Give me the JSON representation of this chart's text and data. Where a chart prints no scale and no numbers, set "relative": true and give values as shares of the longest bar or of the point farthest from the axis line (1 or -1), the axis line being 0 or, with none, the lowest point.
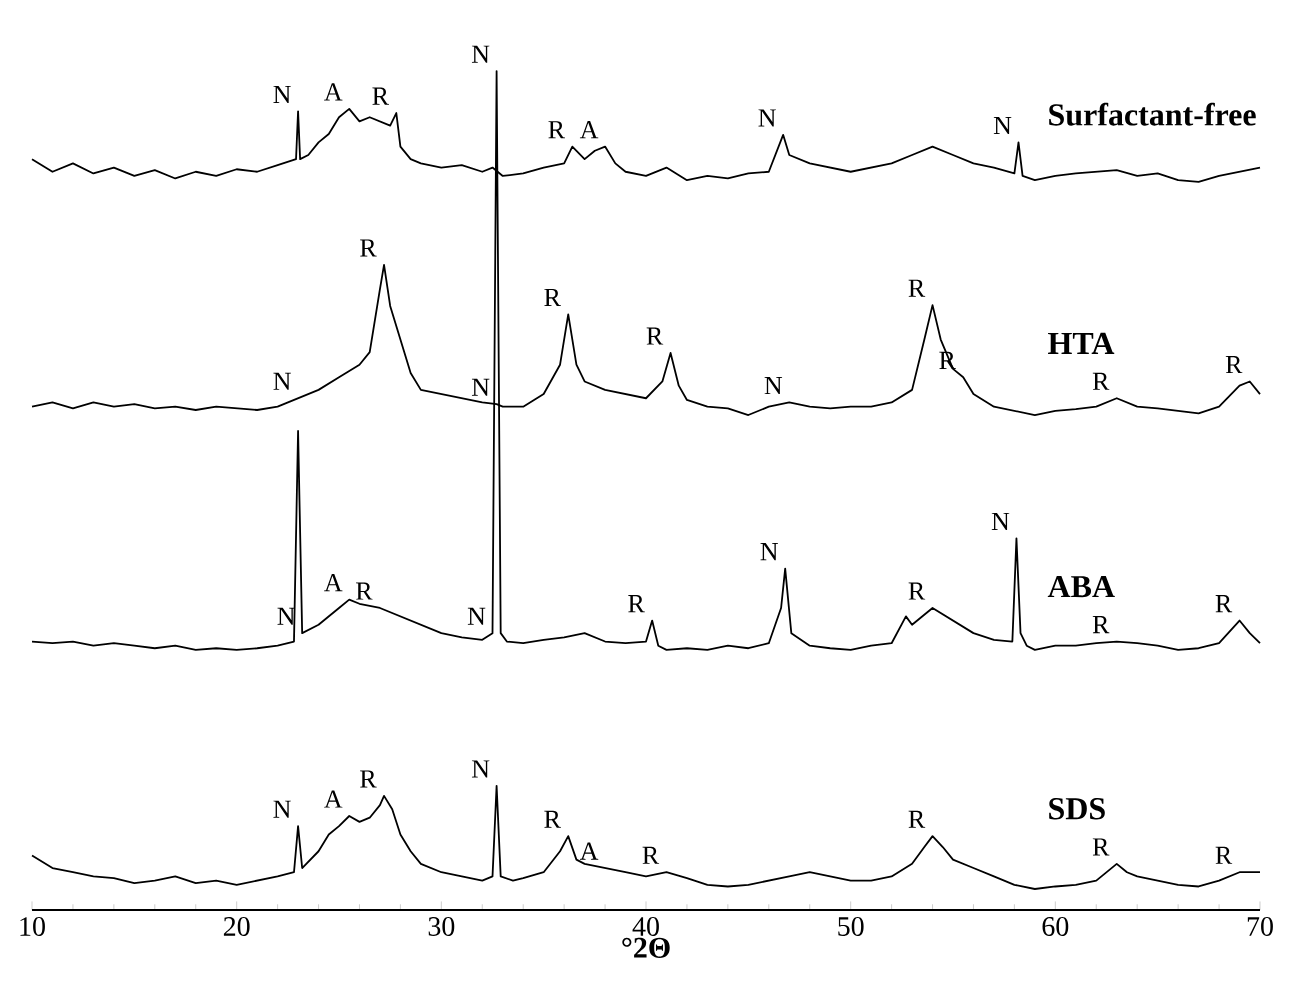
{
  "chart_data": {
    "type": "line",
    "relative": true,
    "xlabel": "°2Θ",
    "xlim": [
      10,
      70
    ],
    "xticks": [
      10,
      20,
      30,
      40,
      50,
      60,
      70
    ],
    "series": [
      {
        "name": "Surfactant-free",
        "color": "#000000",
        "x": [
          10,
          11,
          12,
          13,
          14,
          15,
          16,
          17,
          18,
          19,
          20,
          21,
          22,
          22.9,
          23.0,
          23.1,
          23.5,
          24,
          24.5,
          25,
          25.5,
          26,
          26.5,
          27,
          27.5,
          27.8,
          28,
          28.5,
          29,
          30,
          31,
          32,
          32.5,
          33,
          34,
          35,
          36,
          36.4,
          37,
          37.5,
          38,
          38.5,
          39,
          40,
          41,
          42,
          43,
          44,
          45,
          46,
          46.7,
          47,
          48,
          49,
          50,
          51,
          52,
          53,
          54,
          55,
          56,
          57,
          58,
          58.2,
          58.4,
          59,
          60,
          61,
          62,
          63,
          64,
          65,
          66,
          67,
          68,
          69,
          70
        ],
        "values": [
          0.895,
          0.88,
          0.89,
          0.878,
          0.885,
          0.875,
          0.882,
          0.872,
          0.88,
          0.875,
          0.883,
          0.88,
          0.888,
          0.895,
          0.952,
          0.895,
          0.9,
          0.915,
          0.925,
          0.945,
          0.955,
          0.94,
          0.945,
          0.94,
          0.935,
          0.95,
          0.91,
          0.895,
          0.89,
          0.885,
          0.888,
          0.88,
          0.885,
          0.875,
          0.878,
          0.885,
          0.89,
          0.91,
          0.895,
          0.905,
          0.91,
          0.89,
          0.88,
          0.875,
          0.885,
          0.87,
          0.875,
          0.872,
          0.878,
          0.88,
          0.924,
          0.9,
          0.89,
          0.885,
          0.88,
          0.885,
          0.89,
          0.9,
          0.91,
          0.9,
          0.89,
          0.885,
          0.878,
          0.915,
          0.875,
          0.87,
          0.875,
          0.878,
          0.88,
          0.882,
          0.875,
          0.878,
          0.87,
          0.868,
          0.875,
          0.88,
          0.885
        ]
      },
      {
        "name": "HTA",
        "color": "#000000",
        "x": [
          10,
          11,
          12,
          13,
          14,
          15,
          16,
          17,
          18,
          19,
          20,
          21,
          22,
          23,
          24,
          25,
          26,
          26.5,
          27,
          27.2,
          27.5,
          28,
          28.5,
          29,
          30,
          31,
          32,
          32.7,
          33,
          34,
          35,
          35.8,
          36.2,
          36.6,
          37,
          38,
          39,
          40,
          40.8,
          41.2,
          41.6,
          42,
          43,
          44,
          45,
          46,
          47,
          48,
          49,
          50,
          51,
          52,
          53,
          53.6,
          54,
          54.4,
          55,
          55.5,
          56,
          57,
          58,
          59,
          60,
          61,
          62,
          63,
          64,
          65,
          66,
          67,
          68,
          69,
          69.5,
          70
        ],
        "values": [
          0.6,
          0.605,
          0.598,
          0.605,
          0.6,
          0.603,
          0.598,
          0.6,
          0.596,
          0.6,
          0.598,
          0.596,
          0.6,
          0.61,
          0.62,
          0.635,
          0.65,
          0.665,
          0.74,
          0.769,
          0.72,
          0.68,
          0.64,
          0.62,
          0.615,
          0.61,
          0.605,
          0.603,
          0.6,
          0.6,
          0.615,
          0.65,
          0.71,
          0.65,
          0.63,
          0.62,
          0.615,
          0.61,
          0.63,
          0.664,
          0.625,
          0.608,
          0.6,
          0.598,
          0.59,
          0.6,
          0.605,
          0.6,
          0.598,
          0.6,
          0.6,
          0.605,
          0.62,
          0.68,
          0.721,
          0.68,
          0.645,
          0.635,
          0.615,
          0.6,
          0.595,
          0.59,
          0.595,
          0.597,
          0.6,
          0.61,
          0.6,
          0.598,
          0.595,
          0.592,
          0.6,
          0.625,
          0.63,
          0.615
        ]
      },
      {
        "name": "ABA",
        "color": "#000000",
        "x": [
          10,
          11,
          12,
          13,
          14,
          15,
          16,
          17,
          18,
          19,
          20,
          21,
          22,
          22.8,
          23.0,
          23.2,
          24,
          25,
          25.5,
          26,
          27,
          28,
          29,
          30,
          31,
          32,
          32.5,
          32.7,
          32.9,
          33.2,
          34,
          35,
          36,
          37,
          38,
          39,
          40,
          40.3,
          40.6,
          41,
          42,
          43,
          44,
          45,
          46,
          46.6,
          46.8,
          47.1,
          48,
          49,
          50,
          51,
          52,
          52.7,
          53,
          54,
          55,
          56,
          57,
          57.9,
          58.1,
          58.3,
          58.6,
          59,
          60,
          61,
          62,
          63,
          64,
          65,
          66,
          67,
          68,
          69,
          69.5,
          70
        ],
        "values": [
          0.32,
          0.318,
          0.32,
          0.315,
          0.318,
          0.315,
          0.312,
          0.315,
          0.31,
          0.312,
          0.31,
          0.312,
          0.315,
          0.32,
          0.571,
          0.33,
          0.34,
          0.36,
          0.37,
          0.365,
          0.36,
          0.35,
          0.34,
          0.33,
          0.325,
          0.322,
          0.33,
          1.0,
          0.33,
          0.32,
          0.318,
          0.322,
          0.325,
          0.33,
          0.32,
          0.318,
          0.32,
          0.345,
          0.315,
          0.31,
          0.312,
          0.31,
          0.315,
          0.312,
          0.318,
          0.36,
          0.407,
          0.33,
          0.315,
          0.312,
          0.31,
          0.315,
          0.318,
          0.35,
          0.34,
          0.36,
          0.345,
          0.33,
          0.322,
          0.32,
          0.443,
          0.33,
          0.315,
          0.31,
          0.315,
          0.315,
          0.318,
          0.32,
          0.318,
          0.315,
          0.31,
          0.312,
          0.318,
          0.345,
          0.33,
          0.318
        ]
      },
      {
        "name": "SDS",
        "color": "#000000",
        "x": [
          10,
          11,
          12,
          13,
          14,
          15,
          16,
          17,
          18,
          19,
          20,
          21,
          22,
          22.8,
          23.0,
          23.2,
          24,
          24.5,
          25,
          25.5,
          26,
          26.5,
          27,
          27.2,
          27.6,
          28,
          28.5,
          29,
          30,
          31,
          32,
          32.5,
          32.7,
          32.9,
          33.5,
          34,
          35,
          35.8,
          36.2,
          36.6,
          37,
          38,
          39,
          40,
          41,
          42,
          43,
          44,
          45,
          46,
          47,
          48,
          49,
          50,
          51,
          52,
          53,
          53.6,
          54,
          54.5,
          55,
          56,
          57,
          58,
          59,
          60,
          61,
          62,
          63,
          63.5,
          64,
          65,
          66,
          67,
          68,
          69,
          70
        ],
        "values": [
          0.065,
          0.05,
          0.045,
          0.04,
          0.038,
          0.032,
          0.035,
          0.04,
          0.032,
          0.035,
          0.03,
          0.035,
          0.04,
          0.045,
          0.1,
          0.05,
          0.07,
          0.09,
          0.1,
          0.112,
          0.105,
          0.11,
          0.125,
          0.136,
          0.12,
          0.09,
          0.07,
          0.055,
          0.045,
          0.04,
          0.035,
          0.04,
          0.148,
          0.04,
          0.035,
          0.038,
          0.045,
          0.07,
          0.088,
          0.06,
          0.055,
          0.05,
          0.045,
          0.04,
          0.045,
          0.038,
          0.03,
          0.028,
          0.03,
          0.035,
          0.04,
          0.045,
          0.04,
          0.035,
          0.035,
          0.04,
          0.055,
          0.075,
          0.088,
          0.075,
          0.06,
          0.05,
          0.04,
          0.03,
          0.025,
          0.028,
          0.03,
          0.035,
          0.055,
          0.045,
          0.04,
          0.035,
          0.03,
          0.028,
          0.035,
          0.045,
          0.045
        ]
      }
    ],
    "annotations": [
      {
        "text": "N",
        "x": 23.0,
        "y": 0.952
      },
      {
        "text": "A",
        "x": 25.5,
        "y": 0.955
      },
      {
        "text": "R",
        "x": 27.8,
        "y": 0.95
      },
      {
        "text": "N",
        "x": 32.7,
        "y": 1.0
      },
      {
        "text": "R",
        "x": 36.4,
        "y": 0.91
      },
      {
        "text": "A",
        "x": 38,
        "y": 0.91
      },
      {
        "text": "N",
        "x": 46.7,
        "y": 0.924
      },
      {
        "text": "N",
        "x": 58.2,
        "y": 0.915
      },
      {
        "text": "R",
        "x": 27.2,
        "y": 0.769
      },
      {
        "text": "N",
        "x": 32.7,
        "y": 0.603
      },
      {
        "text": "R",
        "x": 36.2,
        "y": 0.71
      },
      {
        "text": "R",
        "x": 54,
        "y": 0.721
      },
      {
        "text": "N",
        "x": 23,
        "y": 0.61
      },
      {
        "text": "R",
        "x": 41.2,
        "y": 0.664
      },
      {
        "text": "N",
        "x": 47,
        "y": 0.605
      },
      {
        "text": "R",
        "x": 55.5,
        "y": 0.635
      },
      {
        "text": "R",
        "x": 63,
        "y": 0.61
      },
      {
        "text": "R",
        "x": 69.5,
        "y": 0.63
      },
      {
        "text": "N",
        "x": 23.2,
        "y": 0.33
      },
      {
        "text": "N",
        "x": 32.5,
        "y": 0.33
      },
      {
        "text": "A",
        "x": 25.5,
        "y": 0.37
      },
      {
        "text": "R",
        "x": 27,
        "y": 0.36
      },
      {
        "text": "R",
        "x": 40.3,
        "y": 0.345
      },
      {
        "text": "N",
        "x": 46.8,
        "y": 0.407
      },
      {
        "text": "R",
        "x": 54,
        "y": 0.36
      },
      {
        "text": "N",
        "x": 58.1,
        "y": 0.443
      },
      {
        "text": "R",
        "x": 63,
        "y": 0.32
      },
      {
        "text": "R",
        "x": 69,
        "y": 0.345
      },
      {
        "text": "N",
        "x": 23.0,
        "y": 0.1
      },
      {
        "text": "A",
        "x": 25.5,
        "y": 0.112
      },
      {
        "text": "R",
        "x": 27.2,
        "y": 0.136
      },
      {
        "text": "N",
        "x": 32.7,
        "y": 0.148
      },
      {
        "text": "R",
        "x": 36.2,
        "y": 0.088
      },
      {
        "text": "A",
        "x": 38,
        "y": 0.05
      },
      {
        "text": "R",
        "x": 41,
        "y": 0.045
      },
      {
        "text": "R",
        "x": 54,
        "y": 0.088
      },
      {
        "text": "R",
        "x": 63,
        "y": 0.055
      },
      {
        "text": "R",
        "x": 69,
        "y": 0.045
      }
    ]
  }
}
